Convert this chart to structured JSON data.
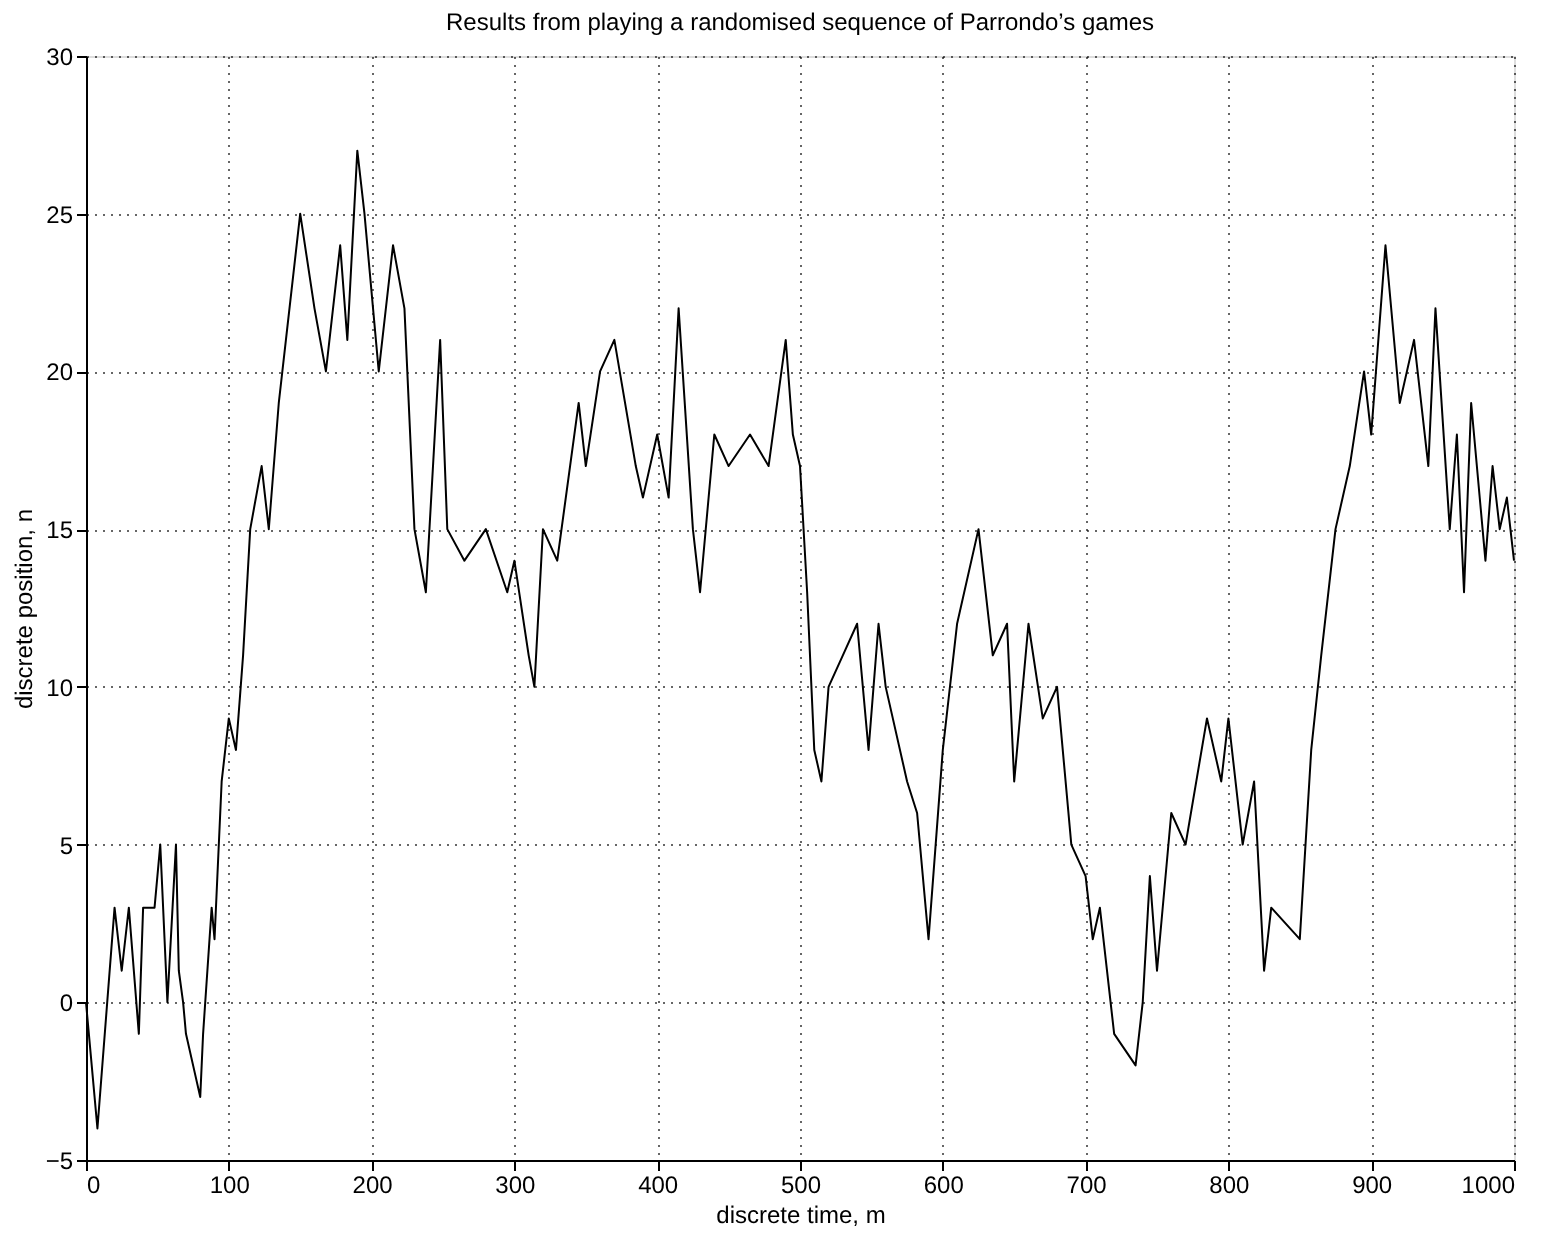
{
  "chart_data": {
    "type": "line",
    "title": "Results from playing a randomised sequence of Parrondo’s games",
    "xlabel": "discrete time, m",
    "ylabel": "discrete position, n",
    "x": [
      0,
      8,
      20,
      25,
      30,
      37,
      40,
      48,
      52,
      57,
      63,
      65,
      68,
      70,
      75,
      80,
      82,
      88,
      90,
      95,
      100,
      105,
      110,
      115,
      123,
      128,
      135,
      140,
      150,
      160,
      168,
      178,
      183,
      190,
      195,
      205,
      215,
      223,
      230,
      238,
      243,
      248,
      253,
      265,
      280,
      295,
      300,
      310,
      314,
      320,
      330,
      345,
      350,
      360,
      370,
      385,
      390,
      400,
      408,
      415,
      425,
      430,
      440,
      450,
      465,
      478,
      490,
      495,
      500,
      505,
      510,
      515,
      520,
      530,
      540,
      548,
      555,
      560,
      565,
      575,
      582,
      590,
      595,
      600,
      610,
      625,
      635,
      645,
      650,
      660,
      670,
      680,
      690,
      700,
      705,
      710,
      720,
      735,
      740,
      745,
      750,
      760,
      770,
      785,
      795,
      800,
      810,
      818,
      825,
      830,
      850,
      858,
      865,
      875,
      885,
      895,
      900,
      910,
      920,
      930,
      940,
      945,
      955,
      960,
      965,
      970,
      980,
      985,
      990,
      995,
      1000
    ],
    "series": [
      {
        "color": "#000000",
        "values": [
          0,
          -4,
          3,
          1,
          3,
          -1,
          3,
          3,
          5,
          0,
          5,
          1,
          0,
          -1,
          -2,
          -3,
          -1,
          3,
          2,
          7,
          9,
          8,
          11,
          15,
          17,
          15,
          19,
          21,
          25,
          22,
          20,
          24,
          21,
          27,
          25,
          20,
          24,
          22,
          15,
          13,
          17,
          21,
          15,
          14,
          15,
          13,
          14,
          11,
          10,
          15,
          14,
          19,
          17,
          20,
          21,
          17,
          16,
          18,
          16,
          22,
          15,
          13,
          18,
          17,
          18,
          17,
          21,
          18,
          17,
          13,
          8,
          7,
          10,
          11,
          12,
          8,
          12,
          10,
          9,
          7,
          6,
          2,
          5,
          8,
          12,
          15,
          11,
          12,
          7,
          12,
          9,
          10,
          5,
          4,
          2,
          3,
          -1,
          -2,
          0,
          4,
          1,
          6,
          5,
          9,
          7,
          9,
          5,
          7,
          1,
          3,
          2,
          8,
          11,
          15,
          17,
          20,
          18,
          24,
          19,
          21,
          17,
          22,
          15,
          18,
          13,
          19,
          14,
          17,
          15,
          16,
          14
        ]
      }
    ],
    "xlim": [
      0,
      1000
    ],
    "ylim": [
      -5,
      30
    ],
    "xticks": [
      0,
      100,
      200,
      300,
      400,
      500,
      600,
      700,
      800,
      900,
      1000
    ],
    "yticks": [
      -5,
      0,
      5,
      10,
      15,
      20,
      25,
      30
    ],
    "grid": true,
    "marker": "none",
    "line_style": "solid"
  }
}
